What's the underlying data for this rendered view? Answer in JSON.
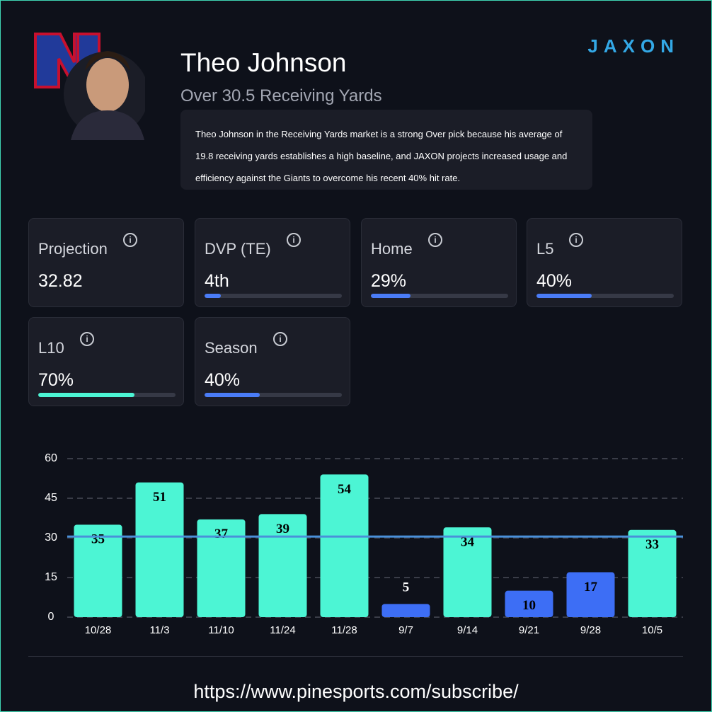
{
  "brand": "JAXON",
  "header": {
    "name": "Theo Johnson",
    "market": "Over 30.5 Receiving Yards",
    "analysis": "Theo Johnson in the Receiving Yards market is a strong Over pick because his average of 19.8 receiving yards establishes a high baseline, and JAXON projects increased usage and efficiency against the Giants to overcome his recent 40% hit rate."
  },
  "stats": [
    {
      "label": "Projection",
      "text": "32.82"
    },
    {
      "label": "DVP (TE)",
      "text": "4th",
      "fill": 12,
      "color": "#4a7cf7"
    },
    {
      "label": "Home",
      "text": "29%",
      "fill": 29,
      "color": "#4a7cf7"
    },
    {
      "label": "L5",
      "text": "40%",
      "fill": 40,
      "color": "#4a7cf7"
    },
    {
      "label": "L10",
      "text": "70%",
      "fill": 70,
      "color": "#4cf5d4"
    },
    {
      "label": "Season",
      "text": "40%",
      "fill": 40,
      "color": "#4a7cf7"
    }
  ],
  "chart_data": {
    "type": "bar",
    "categories": [
      "10/28",
      "11/3",
      "11/10",
      "11/24",
      "11/28",
      "9/7",
      "9/14",
      "9/21",
      "9/28",
      "10/5"
    ],
    "values": [
      35,
      51,
      37,
      39,
      54,
      5,
      34,
      10,
      17,
      33
    ],
    "colors": [
      "#4cf5d4",
      "#4cf5d4",
      "#4cf5d4",
      "#4cf5d4",
      "#4cf5d4",
      "#3d6ef5",
      "#4cf5d4",
      "#3d6ef5",
      "#3d6ef5",
      "#4cf5d4"
    ],
    "ylim": [
      0,
      60
    ],
    "yticks": [
      0,
      15,
      30,
      45,
      60
    ],
    "grid": true,
    "line": 30.5,
    "line_color": "#4a90d9"
  },
  "footer": {
    "url": "https://www.pinesports.com/subscribe/"
  }
}
